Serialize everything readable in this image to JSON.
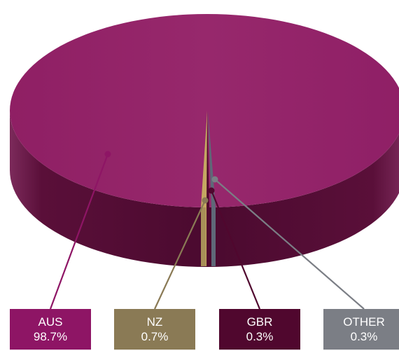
{
  "chart_data": {
    "type": "pie",
    "title": "",
    "style": "3d",
    "slices": [
      {
        "label": "AUS",
        "value": 98.7,
        "display": "98.7%",
        "color": "#8e1565"
      },
      {
        "label": "NZ",
        "value": 0.7,
        "display": "0.7%",
        "color": "#8a7a55"
      },
      {
        "label": "GBR",
        "value": 0.3,
        "display": "0.3%",
        "color": "#50072e"
      },
      {
        "label": "OTHER",
        "value": 0.3,
        "display": "0.3%",
        "color": "#7b7e85"
      }
    ],
    "legend_placement": "bottom"
  },
  "colors": {
    "pie_top": "#97286c",
    "pie_side_dark": "#4d0a31",
    "pie_side_light": "#6d1a4c",
    "nz_slice": "#c5a862",
    "other_slice": "#5f6878"
  }
}
